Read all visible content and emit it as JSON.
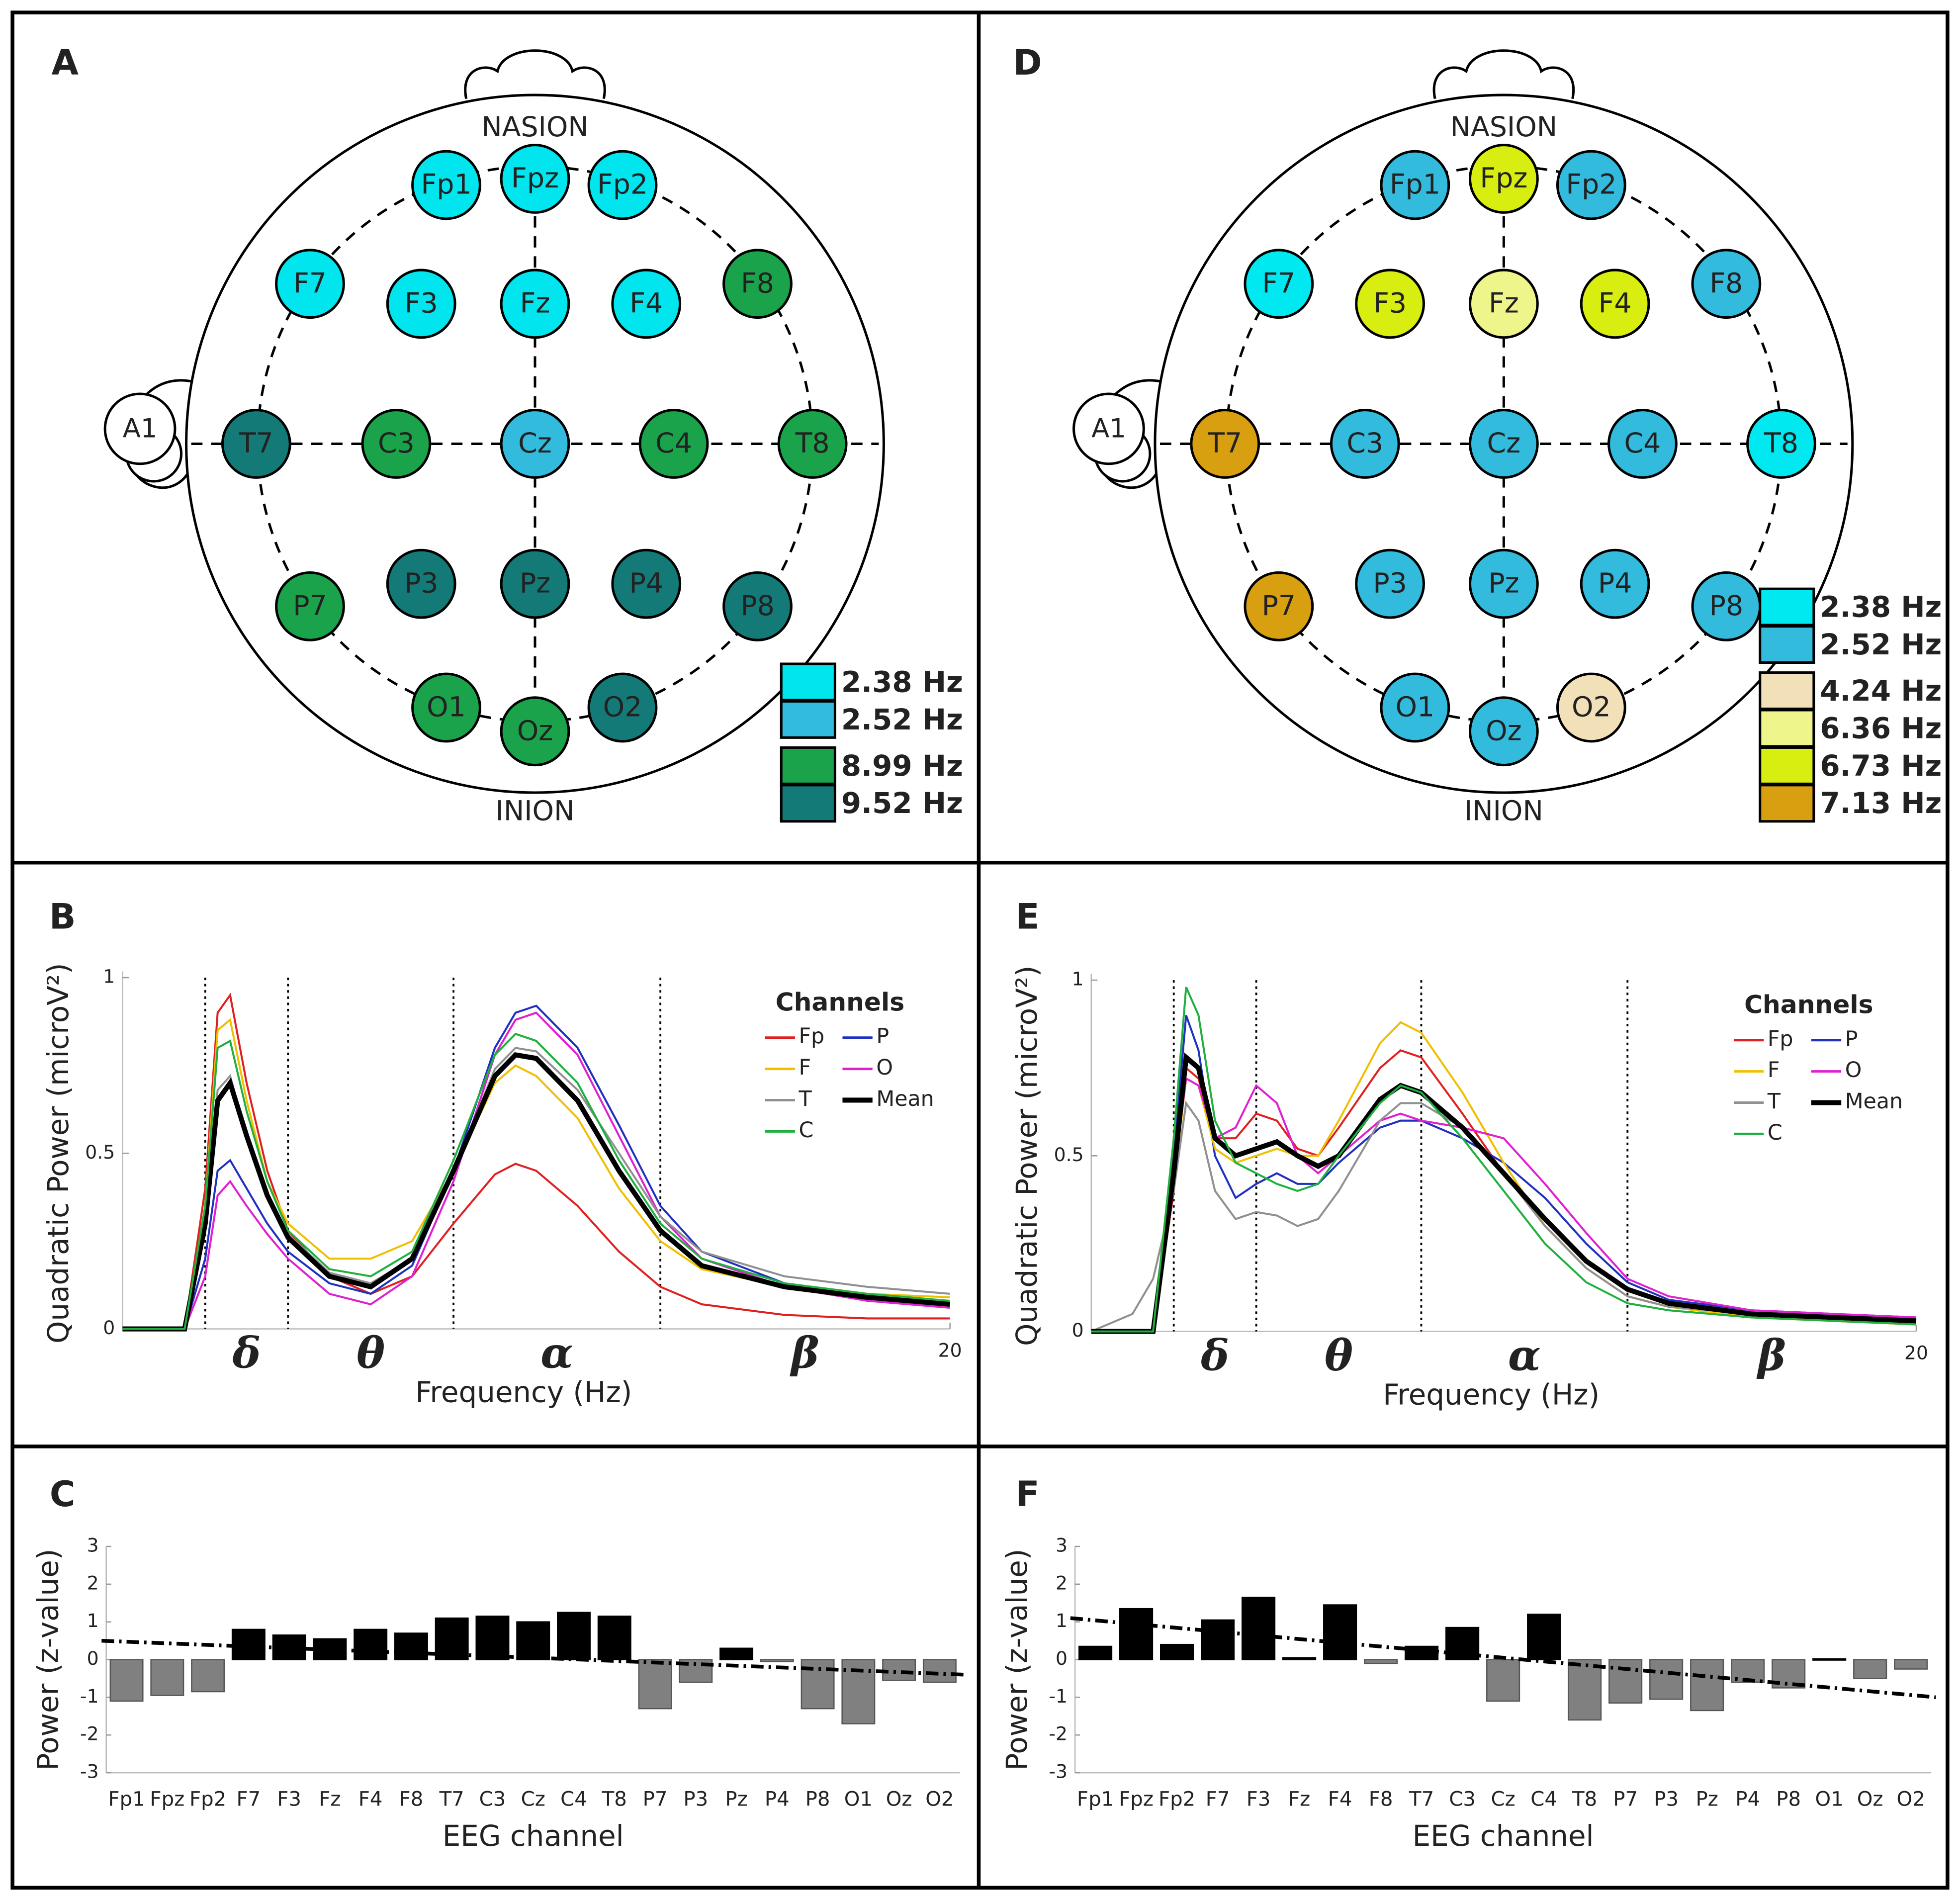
{
  "chart_data": [
    {
      "type": "topomap",
      "panel": "A",
      "nasion": "NASION",
      "inion": "INION",
      "reference": "A1",
      "electrodes": [
        {
          "label": "Fp1",
          "color": "#00e5ee"
        },
        {
          "label": "Fpz",
          "color": "#00e5ee"
        },
        {
          "label": "Fp2",
          "color": "#00e5ee"
        },
        {
          "label": "F7",
          "color": "#00e5ee"
        },
        {
          "label": "F3",
          "color": "#00e5ee"
        },
        {
          "label": "Fz",
          "color": "#00e5ee"
        },
        {
          "label": "F4",
          "color": "#00e5ee"
        },
        {
          "label": "F8",
          "color": "#1aa34a"
        },
        {
          "label": "T7",
          "color": "#137a78"
        },
        {
          "label": "C3",
          "color": "#1aa34a"
        },
        {
          "label": "Cz",
          "color": "#33bbdd"
        },
        {
          "label": "C4",
          "color": "#1aa34a"
        },
        {
          "label": "T8",
          "color": "#1aa34a"
        },
        {
          "label": "P7",
          "color": "#1aa34a"
        },
        {
          "label": "P3",
          "color": "#137a78"
        },
        {
          "label": "Pz",
          "color": "#137a78"
        },
        {
          "label": "P4",
          "color": "#137a78"
        },
        {
          "label": "P8",
          "color": "#137a78"
        },
        {
          "label": "O1",
          "color": "#1aa34a"
        },
        {
          "label": "Oz",
          "color": "#1aa34a"
        },
        {
          "label": "O2",
          "color": "#137a78"
        }
      ],
      "legend": [
        {
          "label": "2.38 Hz",
          "color": "#00e5ee"
        },
        {
          "label": "2.52 Hz",
          "color": "#33bbdd"
        },
        {
          "label": "8.99 Hz",
          "color": "#1aa34a"
        },
        {
          "label": "9.52 Hz",
          "color": "#137a78"
        }
      ]
    },
    {
      "type": "line",
      "panel": "B",
      "xlabel": "Frequency (Hz)",
      "ylabel": "Quadratic Power (microV²)",
      "legend_title": "Channels",
      "xlim": [
        0,
        20
      ],
      "ylim": [
        0,
        1
      ],
      "xticks": [
        20
      ],
      "yticks": [
        0,
        0.5,
        1
      ],
      "band_edges": [
        2,
        4,
        8,
        13
      ],
      "band_labels": [
        "δ",
        "θ",
        "α",
        "β"
      ],
      "x": [
        0,
        1,
        1.5,
        2,
        2.3,
        2.6,
        3,
        3.5,
        4,
        5,
        6,
        7,
        8,
        9,
        9.5,
        10,
        11,
        12,
        13,
        14,
        16,
        18,
        20
      ],
      "series": [
        {
          "name": "Fp",
          "color": "#e02020",
          "values": [
            0,
            0,
            0,
            0.4,
            0.9,
            0.95,
            0.7,
            0.45,
            0.28,
            0.15,
            0.1,
            0.15,
            0.3,
            0.44,
            0.47,
            0.45,
            0.35,
            0.22,
            0.12,
            0.07,
            0.04,
            0.03,
            0.03
          ]
        },
        {
          "name": "P",
          "color": "#2030c0",
          "values": [
            0,
            0,
            0,
            0.2,
            0.45,
            0.48,
            0.4,
            0.3,
            0.22,
            0.13,
            0.1,
            0.18,
            0.45,
            0.8,
            0.9,
            0.92,
            0.8,
            0.58,
            0.35,
            0.22,
            0.13,
            0.09,
            0.07
          ]
        },
        {
          "name": "F",
          "color": "#f0c000",
          "values": [
            0,
            0,
            0,
            0.35,
            0.85,
            0.88,
            0.65,
            0.42,
            0.3,
            0.2,
            0.2,
            0.25,
            0.45,
            0.7,
            0.75,
            0.72,
            0.6,
            0.4,
            0.25,
            0.17,
            0.12,
            0.1,
            0.09
          ]
        },
        {
          "name": "O",
          "color": "#e020d0",
          "values": [
            0,
            0,
            0,
            0.15,
            0.38,
            0.42,
            0.35,
            0.27,
            0.2,
            0.1,
            0.07,
            0.15,
            0.42,
            0.78,
            0.88,
            0.9,
            0.78,
            0.55,
            0.32,
            0.2,
            0.12,
            0.08,
            0.06
          ]
        },
        {
          "name": "T",
          "color": "#909090",
          "values": [
            0,
            0,
            0,
            0.3,
            0.68,
            0.72,
            0.55,
            0.38,
            0.27,
            0.16,
            0.13,
            0.2,
            0.45,
            0.74,
            0.8,
            0.79,
            0.68,
            0.5,
            0.32,
            0.22,
            0.15,
            0.12,
            0.1
          ]
        },
        {
          "name": "Mean",
          "color": "#000000",
          "values": [
            0,
            0,
            0,
            0.3,
            0.65,
            0.7,
            0.55,
            0.38,
            0.26,
            0.15,
            0.12,
            0.2,
            0.45,
            0.72,
            0.78,
            0.77,
            0.65,
            0.45,
            0.28,
            0.18,
            0.12,
            0.09,
            0.07
          ]
        },
        {
          "name": "C",
          "color": "#20b040",
          "values": [
            0,
            0,
            0,
            0.35,
            0.8,
            0.82,
            0.62,
            0.42,
            0.28,
            0.17,
            0.15,
            0.22,
            0.48,
            0.78,
            0.84,
            0.82,
            0.7,
            0.48,
            0.3,
            0.2,
            0.13,
            0.1,
            0.08
          ]
        }
      ]
    },
    {
      "type": "bar",
      "panel": "C",
      "xlabel": "EEG channel",
      "ylabel": "Power (z-value)",
      "categories": [
        "Fp1",
        "Fpz",
        "Fp2",
        "F7",
        "F3",
        "Fz",
        "F4",
        "F8",
        "T7",
        "C3",
        "Cz",
        "C4",
        "T8",
        "P7",
        "P3",
        "Pz",
        "P4",
        "P8",
        "O1",
        "Oz",
        "O2"
      ],
      "values": [
        -1.1,
        -0.95,
        -0.85,
        0.8,
        0.65,
        0.55,
        0.8,
        0.7,
        1.1,
        1.15,
        1.0,
        1.25,
        1.15,
        -1.3,
        -0.6,
        0.3,
        -0.05,
        -1.3,
        -1.7,
        -0.55,
        -0.6
      ],
      "trend": [
        0.5,
        -0.4
      ],
      "positive_color": "#000000",
      "negative_color": "#808080",
      "ylim": [
        -3,
        3
      ],
      "yticks": [
        -3,
        -2,
        -1,
        0,
        1,
        2,
        3
      ]
    },
    {
      "type": "topomap",
      "panel": "D",
      "nasion": "NASION",
      "inion": "INION",
      "reference": "A1",
      "electrodes": [
        {
          "label": "Fp1",
          "color": "#33bbdd"
        },
        {
          "label": "Fpz",
          "color": "#d8ee10"
        },
        {
          "label": "Fp2",
          "color": "#33bbdd"
        },
        {
          "label": "F7",
          "color": "#00e8f0"
        },
        {
          "label": "F3",
          "color": "#d8ee10"
        },
        {
          "label": "Fz",
          "color": "#eef58a"
        },
        {
          "label": "F4",
          "color": "#d8ee10"
        },
        {
          "label": "F8",
          "color": "#33bbdd"
        },
        {
          "label": "T7",
          "color": "#d8a010"
        },
        {
          "label": "C3",
          "color": "#33bbdd"
        },
        {
          "label": "Cz",
          "color": "#33bbdd"
        },
        {
          "label": "C4",
          "color": "#33bbdd"
        },
        {
          "label": "T8",
          "color": "#00e8f0"
        },
        {
          "label": "P7",
          "color": "#d8a010"
        },
        {
          "label": "P3",
          "color": "#33bbdd"
        },
        {
          "label": "Pz",
          "color": "#33bbdd"
        },
        {
          "label": "P4",
          "color": "#33bbdd"
        },
        {
          "label": "P8",
          "color": "#33bbdd"
        },
        {
          "label": "O1",
          "color": "#33bbdd"
        },
        {
          "label": "Oz",
          "color": "#33bbdd"
        },
        {
          "label": "O2",
          "color": "#f2e0b8"
        }
      ],
      "legend": [
        {
          "label": "2.38 Hz",
          "color": "#00e8f0"
        },
        {
          "label": "2.52 Hz",
          "color": "#33bbdd"
        },
        {
          "label": "4.24 Hz",
          "color": "#f2e0b8"
        },
        {
          "label": "6.36 Hz",
          "color": "#eef58a"
        },
        {
          "label": "6.73 Hz",
          "color": "#d8ee10"
        },
        {
          "label": "7.13 Hz",
          "color": "#d8a010"
        }
      ]
    },
    {
      "type": "line",
      "panel": "E",
      "xlabel": "Frequency (Hz)",
      "ylabel": "Quadratic Power (microV²)",
      "legend_title": "Channels",
      "xlim": [
        0,
        20
      ],
      "ylim": [
        0,
        1
      ],
      "xticks": [
        20
      ],
      "yticks": [
        0,
        0.5,
        1
      ],
      "band_edges": [
        2,
        4,
        8,
        13
      ],
      "band_labels": [
        "δ",
        "θ",
        "α",
        "β"
      ],
      "x": [
        0,
        1,
        1.5,
        2,
        2.3,
        2.6,
        3,
        3.5,
        4,
        4.5,
        5,
        5.5,
        6,
        7,
        7.5,
        8,
        9,
        10,
        11,
        12,
        13,
        14,
        16,
        18,
        20
      ],
      "series": [
        {
          "name": "Fp",
          "color": "#e02020",
          "values": [
            0,
            0,
            0,
            0.4,
            0.75,
            0.72,
            0.55,
            0.55,
            0.62,
            0.6,
            0.52,
            0.5,
            0.58,
            0.75,
            0.8,
            0.78,
            0.62,
            0.45,
            0.3,
            0.18,
            0.1,
            0.07,
            0.05,
            0.03,
            0.02
          ]
        },
        {
          "name": "P",
          "color": "#2030c0",
          "values": [
            0,
            0,
            0,
            0.5,
            0.9,
            0.8,
            0.5,
            0.38,
            0.42,
            0.45,
            0.42,
            0.42,
            0.48,
            0.58,
            0.6,
            0.6,
            0.55,
            0.48,
            0.38,
            0.25,
            0.14,
            0.09,
            0.06,
            0.05,
            0.04
          ]
        },
        {
          "name": "F",
          "color": "#f0c000",
          "values": [
            0,
            0,
            0,
            0.42,
            0.72,
            0.7,
            0.52,
            0.48,
            0.5,
            0.52,
            0.5,
            0.5,
            0.6,
            0.82,
            0.88,
            0.85,
            0.68,
            0.48,
            0.3,
            0.18,
            0.1,
            0.07,
            0.04,
            0.03,
            0.02
          ]
        },
        {
          "name": "O",
          "color": "#e020d0",
          "values": [
            0,
            0,
            0,
            0.45,
            0.72,
            0.7,
            0.55,
            0.58,
            0.7,
            0.65,
            0.5,
            0.45,
            0.5,
            0.6,
            0.62,
            0.6,
            0.58,
            0.55,
            0.42,
            0.28,
            0.15,
            0.1,
            0.06,
            0.05,
            0.04
          ]
        },
        {
          "name": "T",
          "color": "#909090",
          "values": [
            0,
            0.05,
            0.15,
            0.4,
            0.65,
            0.6,
            0.4,
            0.32,
            0.34,
            0.33,
            0.3,
            0.32,
            0.4,
            0.6,
            0.65,
            0.65,
            0.58,
            0.45,
            0.3,
            0.18,
            0.1,
            0.07,
            0.05,
            0.04,
            0.03
          ]
        },
        {
          "name": "Mean",
          "color": "#000000",
          "values": [
            0,
            0,
            0,
            0.45,
            0.78,
            0.75,
            0.55,
            0.5,
            0.52,
            0.54,
            0.5,
            0.47,
            0.5,
            0.66,
            0.7,
            0.68,
            0.58,
            0.45,
            0.32,
            0.2,
            0.12,
            0.08,
            0.05,
            0.04,
            0.03
          ]
        },
        {
          "name": "C",
          "color": "#20b040",
          "values": [
            0,
            0,
            0,
            0.55,
            0.98,
            0.9,
            0.6,
            0.48,
            0.45,
            0.42,
            0.4,
            0.42,
            0.5,
            0.65,
            0.7,
            0.68,
            0.55,
            0.4,
            0.25,
            0.14,
            0.08,
            0.06,
            0.04,
            0.03,
            0.02
          ]
        }
      ]
    },
    {
      "type": "bar",
      "panel": "F",
      "xlabel": "EEG channel",
      "ylabel": "Power (z-value)",
      "categories": [
        "Fp1",
        "Fpz",
        "Fp2",
        "F7",
        "F3",
        "Fz",
        "F4",
        "F8",
        "T7",
        "C3",
        "Cz",
        "C4",
        "T8",
        "P7",
        "P3",
        "Pz",
        "P4",
        "P8",
        "O1",
        "Oz",
        "O2"
      ],
      "values": [
        0.35,
        1.35,
        0.4,
        1.05,
        1.65,
        0.05,
        1.45,
        -0.1,
        0.35,
        0.85,
        -1.1,
        1.2,
        -1.6,
        -1.15,
        -1.05,
        -1.35,
        -0.6,
        -0.75,
        0.02,
        -0.5,
        -0.25
      ],
      "trend": [
        1.1,
        -1.0
      ],
      "positive_color": "#000000",
      "negative_color": "#808080",
      "ylim": [
        -3,
        3
      ],
      "yticks": [
        -3,
        -2,
        -1,
        0,
        1,
        2,
        3
      ]
    }
  ]
}
